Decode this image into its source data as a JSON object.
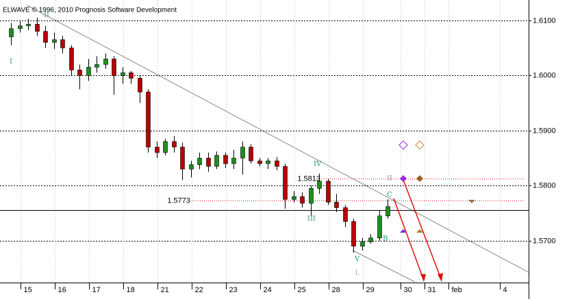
{
  "chart_data": {
    "type": "candlestick",
    "title": "ELWAVE © 1996, 2010 Prognosis Software Development",
    "open": [
      1.607,
      1.6085,
      1.609,
      1.6093,
      1.608,
      1.606,
      1.6065,
      1.605,
      1.601,
      1.6,
      1.6015,
      1.602,
      1.603,
      1.6,
      1.6005,
      1.5995,
      1.597,
      1.587,
      1.586,
      1.588,
      1.587,
      1.583,
      1.5838,
      1.585,
      1.5835,
      1.5855,
      1.584,
      1.585,
      1.587,
      1.5845,
      1.584,
      1.5845,
      1.5835,
      1.5775,
      1.578,
      1.5768,
      1.5795,
      1.5808,
      1.577,
      1.576,
      1.5735,
      1.569,
      1.5698,
      1.5705,
      1.5745
    ],
    "high": [
      1.6095,
      1.6098,
      1.6103,
      1.6105,
      1.609,
      1.6078,
      1.6072,
      1.6055,
      1.602,
      1.603,
      1.6035,
      1.604,
      1.6035,
      1.6015,
      1.6008,
      1.6,
      1.5975,
      1.588,
      1.5885,
      1.589,
      1.5878,
      1.5845,
      1.586,
      1.586,
      1.5862,
      1.586,
      1.5865,
      1.588,
      1.5875,
      1.585,
      1.585,
      1.5852,
      1.584,
      1.579,
      1.5788,
      1.58,
      1.5822,
      1.5812,
      1.5785,
      1.5765,
      1.574,
      1.5705,
      1.5712,
      1.5755,
      1.5775
    ],
    "low": [
      1.6055,
      1.6078,
      1.6082,
      1.6072,
      1.605,
      1.6048,
      1.604,
      1.6,
      1.5975,
      1.599,
      1.6005,
      1.6012,
      1.5965,
      1.5985,
      1.5985,
      1.595,
      1.586,
      1.585,
      1.5855,
      1.586,
      1.581,
      1.5815,
      1.583,
      1.5825,
      1.583,
      1.5832,
      1.583,
      1.582,
      1.584,
      1.5835,
      1.583,
      1.5828,
      1.5758,
      1.577,
      1.576,
      1.5745,
      1.5785,
      1.5765,
      1.5752,
      1.5725,
      1.5678,
      1.5682,
      1.5695,
      1.57,
      1.574
    ],
    "close": [
      1.6085,
      1.609,
      1.6093,
      1.608,
      1.606,
      1.6065,
      1.605,
      1.601,
      1.6,
      1.6015,
      1.602,
      1.603,
      1.6,
      1.6005,
      1.5995,
      1.597,
      1.587,
      1.586,
      1.588,
      1.587,
      1.583,
      1.5838,
      1.585,
      1.5835,
      1.5855,
      1.584,
      1.585,
      1.587,
      1.5845,
      1.584,
      1.5845,
      1.5835,
      1.5775,
      1.578,
      1.5768,
      1.5795,
      1.5808,
      1.577,
      1.576,
      1.5735,
      1.569,
      1.5698,
      1.5705,
      1.5745,
      1.5762
    ],
    "up_color": "#1e8f1e",
    "down_color": "#b80000",
    "ylim": [
      1.5624,
      1.6137
    ],
    "yticks": [
      {
        "value": 1.61,
        "label": "1.6100"
      },
      {
        "value": 1.6,
        "label": "1.6000"
      },
      {
        "value": 1.59,
        "label": "1.5900"
      },
      {
        "value": 1.58,
        "label": "1.5800"
      },
      {
        "value": 1.57,
        "label": "1.5700"
      }
    ],
    "x_labels": [
      "15",
      "16",
      "17",
      "18",
      "21",
      "22",
      "23",
      "24",
      "25",
      "28",
      "29",
      "30",
      "31",
      "feb",
      "4"
    ],
    "levels": [
      1.5813,
      1.5773
    ],
    "price_line": 1.5756,
    "grid": true
  }
}
